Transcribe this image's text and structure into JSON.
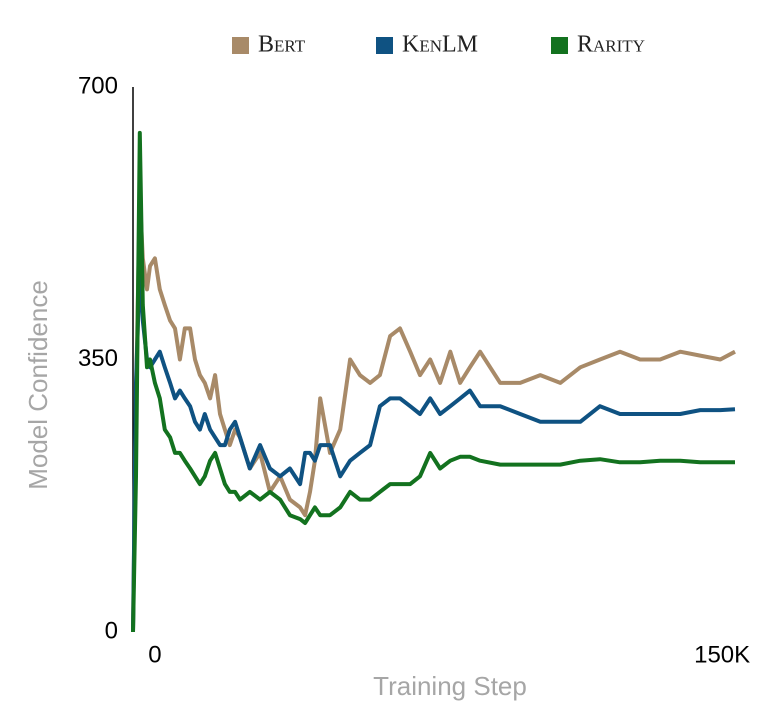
{
  "chart_data": {
    "type": "line",
    "xlabel": "Training Step",
    "ylabel": "Model Confidence",
    "xlim": [
      -5800,
      153400
    ],
    "xticks": [
      0,
      {
        "value": 150000,
        "label": "150K"
      }
    ],
    "ylim": [
      0,
      700
    ],
    "yticks": [
      0,
      350,
      700
    ],
    "grid": false,
    "legend": "top",
    "x": [
      -5800,
      -5000,
      -4000,
      -3200,
      -2100,
      -1300,
      0,
      1300,
      2600,
      4000,
      5300,
      6600,
      7900,
      9300,
      10600,
      11900,
      13200,
      14600,
      15900,
      17200,
      18500,
      19800,
      21200,
      22500,
      25100,
      27800,
      30400,
      33100,
      35700,
      38400,
      39700,
      41000,
      42300,
      43700,
      46300,
      49000,
      51600,
      54200,
      56900,
      59500,
      62200,
      64800,
      67500,
      70100,
      72800,
      75400,
      78100,
      80700,
      83300,
      86000,
      91300,
      96600,
      101900,
      107200,
      112500,
      117700,
      123000,
      128300,
      133600,
      138900,
      144200,
      149500,
      153400
    ],
    "series": [
      {
        "name": "Bert",
        "color": "#a88a68",
        "values": [
          0,
          300,
          560,
          480,
          440,
          470,
          480,
          440,
          420,
          400,
          390,
          350,
          390,
          390,
          350,
          330,
          320,
          300,
          330,
          280,
          260,
          240,
          260,
          250,
          210,
          230,
          180,
          200,
          170,
          160,
          150,
          180,
          220,
          300,
          230,
          260,
          350,
          330,
          320,
          330,
          380,
          390,
          360,
          330,
          350,
          320,
          360,
          320,
          340,
          360,
          320,
          320,
          330,
          320,
          340,
          350,
          360,
          350,
          350,
          360,
          355,
          350,
          360
        ]
      },
      {
        "name": "KenLM",
        "color": "#0f5282",
        "values": [
          0,
          320,
          470,
          400,
          350,
          340,
          350,
          360,
          340,
          320,
          300,
          310,
          300,
          290,
          270,
          260,
          280,
          260,
          250,
          240,
          240,
          260,
          270,
          250,
          210,
          240,
          210,
          200,
          210,
          190,
          230,
          230,
          220,
          240,
          240,
          200,
          220,
          230,
          240,
          290,
          300,
          300,
          290,
          280,
          300,
          280,
          290,
          300,
          310,
          290,
          290,
          280,
          270,
          270,
          270,
          290,
          280,
          280,
          280,
          280,
          285,
          285,
          286
        ]
      },
      {
        "name": "Rarity",
        "color": "#13721f",
        "values": [
          0,
          200,
          641,
          420,
          340,
          350,
          320,
          300,
          260,
          250,
          230,
          230,
          220,
          210,
          200,
          190,
          200,
          220,
          230,
          210,
          190,
          180,
          180,
          170,
          180,
          170,
          180,
          170,
          150,
          145,
          140,
          150,
          160,
          150,
          150,
          160,
          180,
          170,
          170,
          180,
          190,
          190,
          190,
          200,
          230,
          210,
          220,
          225,
          225,
          220,
          215,
          215,
          215,
          215,
          220,
          222,
          218,
          218,
          220,
          220,
          218,
          218,
          218
        ]
      }
    ]
  }
}
